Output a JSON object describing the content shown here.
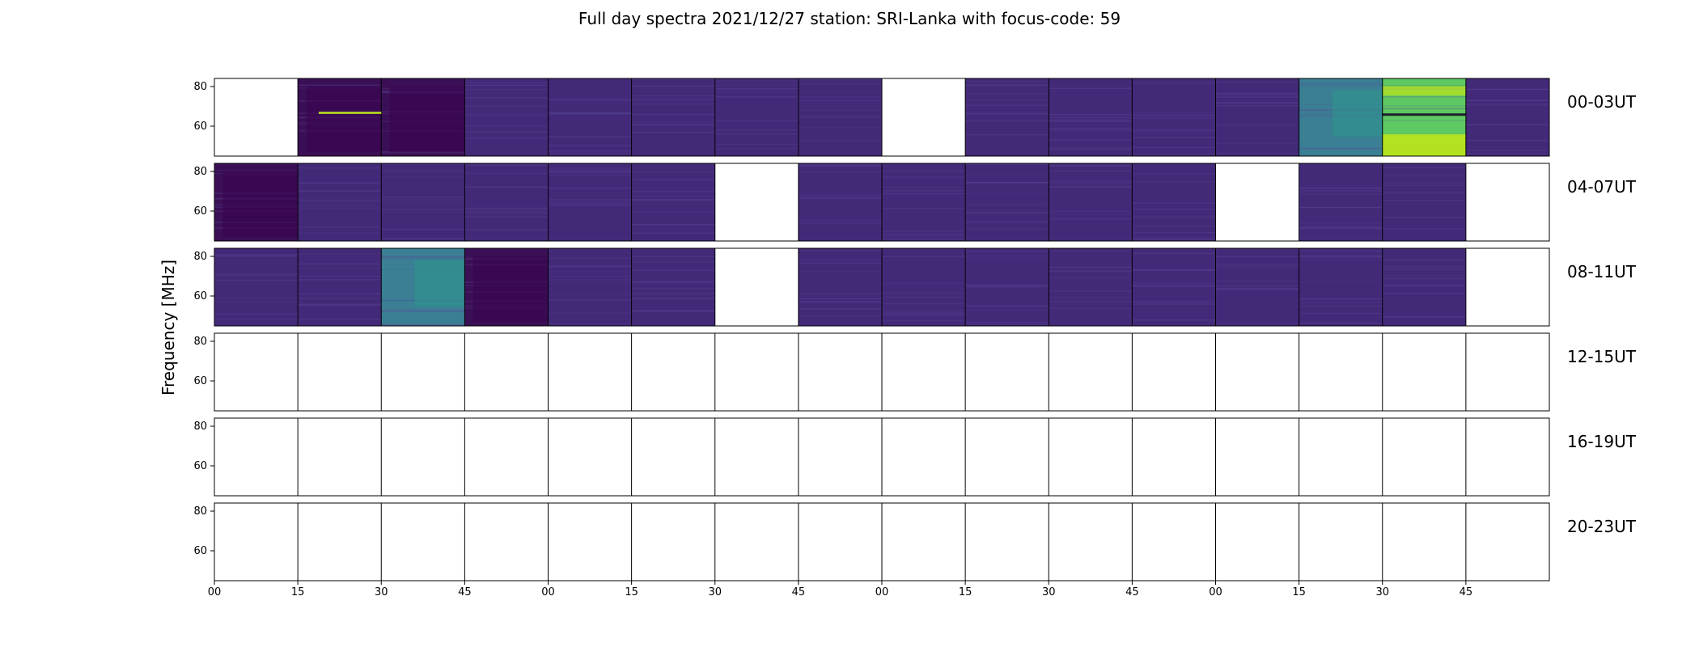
{
  "chart_data": {
    "type": "heatmap",
    "title": "Full day spectra 2021/12/27 station: SRI-Lanka with focus-code: 59",
    "ylabel": "Frequency [MHz]",
    "yticks": [
      "80",
      "60"
    ],
    "xticks": [
      "00",
      "15",
      "30",
      "45",
      "00",
      "15",
      "30",
      "45",
      "00",
      "15",
      "30",
      "45",
      "00",
      "15",
      "30",
      "45"
    ],
    "rows": [
      {
        "label": "00-03UT",
        "cells": [
          "empty",
          "dark",
          "dark",
          "normal",
          "normal",
          "normal",
          "normal",
          "normal",
          "empty",
          "normal",
          "normal",
          "normal",
          "normal",
          "bright",
          "hot",
          "normal"
        ]
      },
      {
        "label": "04-07UT",
        "cells": [
          "dark",
          "normal",
          "normal",
          "normal",
          "normal",
          "normal",
          "empty",
          "normal",
          "normal",
          "normal",
          "normal",
          "normal",
          "empty",
          "normal",
          "normal",
          "empty"
        ]
      },
      {
        "label": "08-11UT",
        "cells": [
          "normal",
          "normal",
          "bright",
          "dark",
          "normal",
          "normal",
          "empty",
          "normal",
          "normal",
          "normal",
          "normal",
          "normal",
          "normal",
          "normal",
          "normal",
          "empty"
        ]
      },
      {
        "label": "12-15UT",
        "cells": [
          "empty",
          "empty",
          "empty",
          "empty",
          "empty",
          "empty",
          "empty",
          "empty",
          "empty",
          "empty",
          "empty",
          "empty",
          "empty",
          "empty",
          "empty",
          "empty"
        ]
      },
      {
        "label": "16-19UT",
        "cells": [
          "empty",
          "empty",
          "empty",
          "empty",
          "empty",
          "empty",
          "empty",
          "empty",
          "empty",
          "empty",
          "empty",
          "empty",
          "empty",
          "empty",
          "empty",
          "empty"
        ]
      },
      {
        "label": "20-23UT",
        "cells": [
          "empty",
          "empty",
          "empty",
          "empty",
          "empty",
          "empty",
          "empty",
          "empty",
          "empty",
          "empty",
          "empty",
          "empty",
          "empty",
          "empty",
          "empty",
          "empty"
        ]
      }
    ],
    "colormap": {
      "dark": "#3b0f55",
      "normal": "#432a78",
      "bright": "#3a7f93",
      "hot": "#5ec962",
      "line": "#bde51a",
      "empty": "#ffffff"
    }
  }
}
